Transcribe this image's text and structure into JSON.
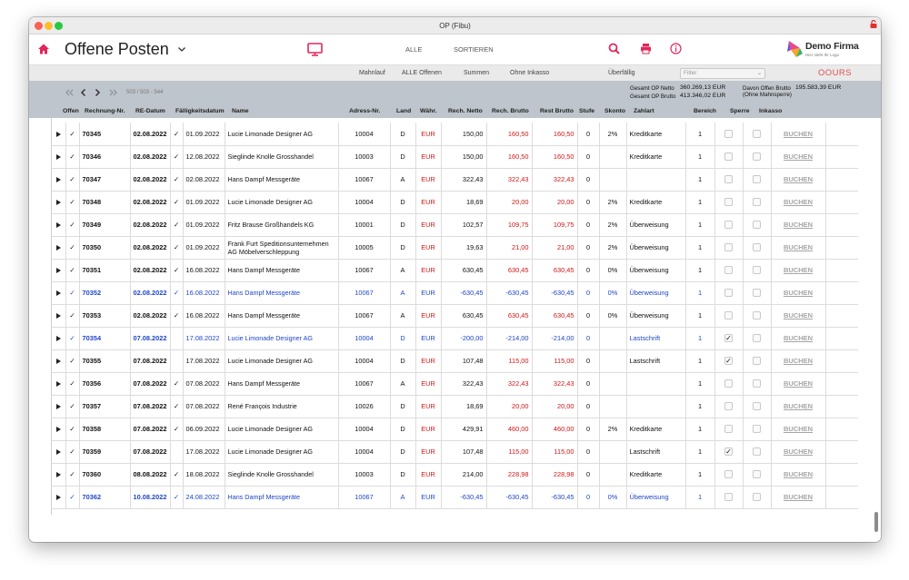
{
  "window_title": "OP (Fibu)",
  "header": {
    "title": "Offene Posten",
    "alle": "ALLE",
    "sortieren": "SORTIEREN"
  },
  "logo": {
    "name": "Demo Firma",
    "sub": "Hier steht Ihr Logo"
  },
  "subbar": {
    "mahnlauf": "Mahnlauf",
    "alle_offenen": "ALLE Offenen",
    "summen": "Summen",
    "ohne_inkasso": "Ohne Inkasso",
    "ueberfaellig": "Überfällig",
    "filter_placeholder": "Filter",
    "ours": "OOURS"
  },
  "pager": {
    "count": "503 / 503 - 544"
  },
  "totals": {
    "netto_label": "Gesamt OP Netto",
    "netto_value": "360.269,13 EUR",
    "brutto_label": "Gesamt OP Brutto",
    "brutto_value": "413.346,02 EUR",
    "davon_label": "Davon Offen Brutto",
    "davon_sub": "(Ohne Mahnsperre)",
    "davon_value": "195.583,39 EUR"
  },
  "columns": [
    "Offen",
    "Rechnung-Nr.",
    "RE-Datum",
    "Fälligkeitsdatum",
    "Name",
    "Adress-Nr.",
    "Land",
    "Währ.",
    "Rech. Netto",
    "Rech. Brutto",
    "Rest Brutto",
    "Stufe",
    "Skonto",
    "Zahlart",
    "Bereich",
    "Sperre",
    "Inkasso"
  ],
  "action_label": "BUCHEN",
  "colors": {
    "accent_red": "#e2275b",
    "blue_row": "#1e46c8",
    "red_value": "#d21515"
  },
  "rows": [
    {
      "nr": "70345",
      "re": "02.08.2022",
      "fchk": "✓",
      "fae": "01.09.2022",
      "name": "Lucie Limonade Designer AG",
      "adr": "10004",
      "land": "D",
      "wae": "EUR",
      "netto": "150,00",
      "brutto": "160,50",
      "rest": "160,50",
      "stufe": "0",
      "skonto": "2%",
      "zahlart": "Kreditkarte",
      "bereich": "1",
      "sperre": "",
      "inkasso": "",
      "blue": false
    },
    {
      "nr": "70346",
      "re": "02.08.2022",
      "fchk": "✓",
      "fae": "12.08.2022",
      "name": "Sieglinde Knolle Grosshandel",
      "adr": "10003",
      "land": "D",
      "wae": "EUR",
      "netto": "150,00",
      "brutto": "160,50",
      "rest": "160,50",
      "stufe": "0",
      "skonto": "",
      "zahlart": "Kreditkarte",
      "bereich": "1",
      "sperre": "",
      "inkasso": "",
      "blue": false
    },
    {
      "nr": "70347",
      "re": "02.08.2022",
      "fchk": "✓",
      "fae": "02.08.2022",
      "name": "Hans Dampf Messgeräte",
      "adr": "10067",
      "land": "A",
      "wae": "EUR",
      "netto": "322,43",
      "brutto": "322,43",
      "rest": "322,43",
      "stufe": "0",
      "skonto": "",
      "zahlart": "",
      "bereich": "1",
      "sperre": "",
      "inkasso": "",
      "blue": false
    },
    {
      "nr": "70348",
      "re": "02.08.2022",
      "fchk": "✓",
      "fae": "01.09.2022",
      "name": "Lucie Limonade Designer AG",
      "adr": "10004",
      "land": "D",
      "wae": "EUR",
      "netto": "18,69",
      "brutto": "20,00",
      "rest": "20,00",
      "stufe": "0",
      "skonto": "2%",
      "zahlart": "Kreditkarte",
      "bereich": "1",
      "sperre": "",
      "inkasso": "",
      "blue": false
    },
    {
      "nr": "70349",
      "re": "02.08.2022",
      "fchk": "✓",
      "fae": "01.09.2022",
      "name": "Fritz Brause Großhandels KG",
      "adr": "10001",
      "land": "D",
      "wae": "EUR",
      "netto": "102,57",
      "brutto": "109,75",
      "rest": "109,75",
      "stufe": "0",
      "skonto": "2%",
      "zahlart": "Überweisung",
      "bereich": "1",
      "sperre": "",
      "inkasso": "",
      "blue": false
    },
    {
      "nr": "70350",
      "re": "02.08.2022",
      "fchk": "✓",
      "fae": "01.09.2022",
      "name": "Frank Furt Speditionsunternehmen AG Möbelverschleppung",
      "adr": "10005",
      "land": "D",
      "wae": "EUR",
      "netto": "19,63",
      "brutto": "21,00",
      "rest": "21,00",
      "stufe": "0",
      "skonto": "2%",
      "zahlart": "Überweisung",
      "bereich": "1",
      "sperre": "",
      "inkasso": "",
      "blue": false
    },
    {
      "nr": "70351",
      "re": "02.08.2022",
      "fchk": "✓",
      "fae": "16.08.2022",
      "name": "Hans Dampf Messgeräte",
      "adr": "10067",
      "land": "A",
      "wae": "EUR",
      "netto": "630,45",
      "brutto": "630,45",
      "rest": "630,45",
      "stufe": "0",
      "skonto": "0%",
      "zahlart": "Überweisung",
      "bereich": "1",
      "sperre": "",
      "inkasso": "",
      "blue": false
    },
    {
      "nr": "70352",
      "re": "02.08.2022",
      "fchk": "✓",
      "fae": "16.08.2022",
      "name": "Hans Dampf Messgeräte",
      "adr": "10067",
      "land": "A",
      "wae": "EUR",
      "netto": "-630,45",
      "brutto": "-630,45",
      "rest": "-630,45",
      "stufe": "0",
      "skonto": "0%",
      "zahlart": "Überweisung",
      "bereich": "1",
      "sperre": "",
      "inkasso": "",
      "blue": true
    },
    {
      "nr": "70353",
      "re": "02.08.2022",
      "fchk": "✓",
      "fae": "16.08.2022",
      "name": "Hans Dampf Messgeräte",
      "adr": "10067",
      "land": "A",
      "wae": "EUR",
      "netto": "630,45",
      "brutto": "630,45",
      "rest": "630,45",
      "stufe": "0",
      "skonto": "0%",
      "zahlart": "Überweisung",
      "bereich": "1",
      "sperre": "",
      "inkasso": "",
      "blue": false
    },
    {
      "nr": "70354",
      "re": "07.08.2022",
      "fchk": "",
      "fae": "17.08.2022",
      "name": "Lucie Limonade Designer AG",
      "adr": "10004",
      "land": "D",
      "wae": "EUR",
      "netto": "-200,00",
      "brutto": "-214,00",
      "rest": "-214,00",
      "stufe": "0",
      "skonto": "",
      "zahlart": "Lastschrift",
      "bereich": "1",
      "sperre": "✓",
      "inkasso": "",
      "blue": true
    },
    {
      "nr": "70355",
      "re": "07.08.2022",
      "fchk": "",
      "fae": "17.08.2022",
      "name": "Lucie Limonade Designer AG",
      "adr": "10004",
      "land": "D",
      "wae": "EUR",
      "netto": "107,48",
      "brutto": "115,00",
      "rest": "115,00",
      "stufe": "0",
      "skonto": "",
      "zahlart": "Lastschrift",
      "bereich": "1",
      "sperre": "✓",
      "inkasso": "",
      "blue": false
    },
    {
      "nr": "70356",
      "re": "07.08.2022",
      "fchk": "✓",
      "fae": "07.08.2022",
      "name": "Hans Dampf Messgeräte",
      "adr": "10067",
      "land": "A",
      "wae": "EUR",
      "netto": "322,43",
      "brutto": "322,43",
      "rest": "322,43",
      "stufe": "0",
      "skonto": "",
      "zahlart": "",
      "bereich": "1",
      "sperre": "",
      "inkasso": "",
      "blue": false
    },
    {
      "nr": "70357",
      "re": "07.08.2022",
      "fchk": "✓",
      "fae": "07.08.2022",
      "name": "René François Industrie",
      "adr": "10026",
      "land": "D",
      "wae": "EUR",
      "netto": "18,69",
      "brutto": "20,00",
      "rest": "20,00",
      "stufe": "0",
      "skonto": "",
      "zahlart": "",
      "bereich": "1",
      "sperre": "",
      "inkasso": "",
      "blue": false
    },
    {
      "nr": "70358",
      "re": "07.08.2022",
      "fchk": "✓",
      "fae": "06.09.2022",
      "name": "Lucie Limonade Designer AG",
      "adr": "10004",
      "land": "D",
      "wae": "EUR",
      "netto": "429,91",
      "brutto": "460,00",
      "rest": "460,00",
      "stufe": "0",
      "skonto": "2%",
      "zahlart": "Kreditkarte",
      "bereich": "1",
      "sperre": "",
      "inkasso": "",
      "blue": false
    },
    {
      "nr": "70359",
      "re": "07.08.2022",
      "fchk": "",
      "fae": "17.08.2022",
      "name": "Lucie Limonade Designer AG",
      "adr": "10004",
      "land": "D",
      "wae": "EUR",
      "netto": "107,48",
      "brutto": "115,00",
      "rest": "115,00",
      "stufe": "0",
      "skonto": "",
      "zahlart": "Lastschrift",
      "bereich": "1",
      "sperre": "✓",
      "inkasso": "",
      "blue": false
    },
    {
      "nr": "70360",
      "re": "08.08.2022",
      "fchk": "✓",
      "fae": "18.08.2022",
      "name": "Sieglinde Knolle Grosshandel",
      "adr": "10003",
      "land": "D",
      "wae": "EUR",
      "netto": "214,00",
      "brutto": "228,98",
      "rest": "228,98",
      "stufe": "0",
      "skonto": "",
      "zahlart": "Kreditkarte",
      "bereich": "1",
      "sperre": "",
      "inkasso": "",
      "blue": false
    },
    {
      "nr": "70362",
      "re": "10.08.2022",
      "fchk": "✓",
      "fae": "24.08.2022",
      "name": "Hans Dampf Messgeräte",
      "adr": "10067",
      "land": "A",
      "wae": "EUR",
      "netto": "-630,45",
      "brutto": "-630,45",
      "rest": "-630,45",
      "stufe": "0",
      "skonto": "0%",
      "zahlart": "Überweisung",
      "bereich": "1",
      "sperre": "",
      "inkasso": "",
      "blue": true
    }
  ]
}
